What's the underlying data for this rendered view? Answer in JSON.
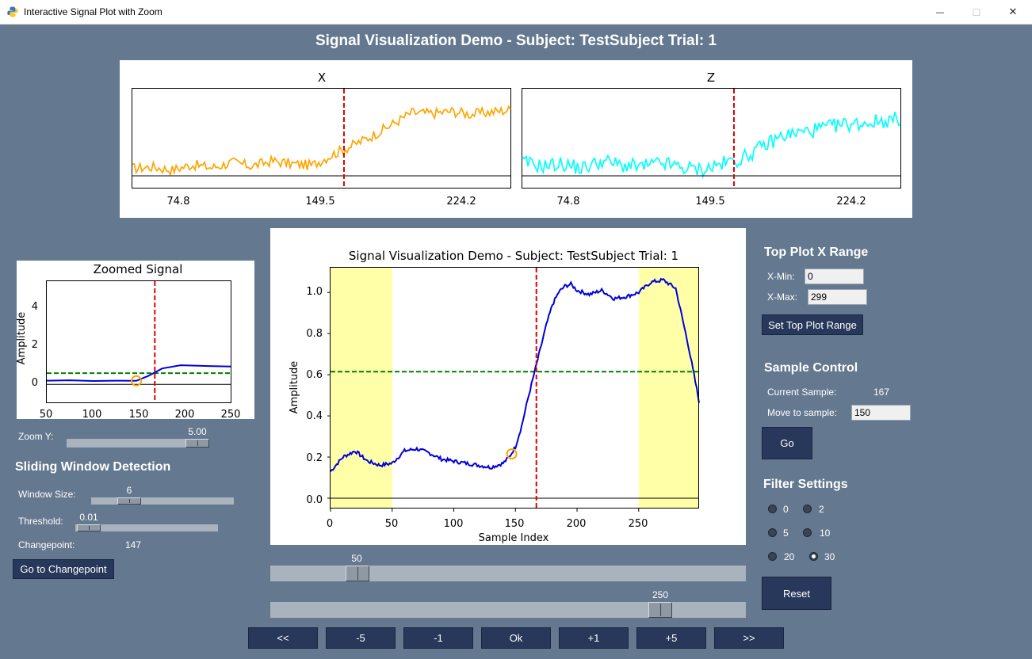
{
  "window": {
    "title": "Interactive Signal Plot with Zoom",
    "minimize": "—",
    "maximize": "☐",
    "close": "✕"
  },
  "main_title": "Signal Visualization Demo - Subject: TestSubject Trial: 1",
  "top_plots": [
    {
      "title": "X",
      "ticks": [
        "74.8",
        "149.5",
        "224.2"
      ],
      "line_color": "#ffa500"
    },
    {
      "title": "Z",
      "ticks": [
        "74.8",
        "149.5",
        "224.2"
      ],
      "line_color": "#00ffff"
    }
  ],
  "zoomed": {
    "title": "Zoomed Signal",
    "ylabel": "Amplitude",
    "yticks": [
      "4",
      "2",
      "0"
    ],
    "xticks": [
      "50",
      "100",
      "150",
      "200",
      "250"
    ]
  },
  "main_plot": {
    "title": "Signal Visualization Demo - Subject: TestSubject Trial: 1",
    "xlabel": "Sample Index",
    "ylabel": "Amplitude",
    "yticks": [
      "1.0",
      "0.8",
      "0.6",
      "0.4",
      "0.2",
      "0.0"
    ],
    "xticks": [
      "0",
      "50",
      "100",
      "150",
      "200",
      "250"
    ]
  },
  "chart_data": [
    {
      "type": "line",
      "title": "X",
      "xlim": [
        0,
        299
      ],
      "changepoint": 167,
      "series": [
        {
          "values": [
            0.12,
            0.14,
            0.1,
            0.17,
            0.13,
            0.2,
            0.15,
            0.22,
            0.18,
            0.16,
            0.3,
            0.42,
            0.55,
            0.7,
            0.86,
            0.85,
            0.88,
            0.84,
            0.87,
            0.9
          ]
        }
      ]
    },
    {
      "type": "line",
      "title": "Z",
      "xlim": [
        0,
        299
      ],
      "changepoint": 167,
      "series": [
        {
          "values": [
            0.2,
            0.15,
            0.18,
            0.12,
            0.22,
            0.16,
            0.14,
            0.19,
            0.13,
            0.1,
            0.18,
            0.25,
            0.4,
            0.55,
            0.6,
            0.65,
            0.7,
            0.72,
            0.75,
            0.78
          ]
        }
      ]
    },
    {
      "type": "line",
      "title": "Zoomed Signal",
      "ylabel": "Amplitude",
      "xlim": [
        50,
        250
      ],
      "ylim": [
        -1,
        5.5
      ],
      "threshold": 0.6,
      "changepoint": 167,
      "marker": {
        "x": 147,
        "y": 0.19
      },
      "series": [
        {
          "x": [
            50,
            75,
            100,
            125,
            147,
            160,
            175,
            195,
            225,
            250
          ],
          "values": [
            0.2,
            0.22,
            0.18,
            0.2,
            0.19,
            0.45,
            0.85,
            1.02,
            0.98,
            0.95
          ]
        }
      ]
    },
    {
      "type": "line",
      "title": "Signal Visualization Demo - Subject: TestSubject Trial: 1",
      "xlabel": "Sample Index",
      "ylabel": "Amplitude",
      "xlim": [
        0,
        299
      ],
      "ylim": [
        -0.05,
        1.12
      ],
      "threshold": 0.615,
      "changepoint": 167,
      "marker": {
        "x": 147,
        "y": 0.215
      },
      "shaded_ranges": [
        [
          0,
          50
        ],
        [
          250,
          299
        ]
      ],
      "series": [
        {
          "x": [
            0,
            10,
            20,
            30,
            40,
            50,
            60,
            70,
            80,
            90,
            100,
            110,
            120,
            130,
            140,
            145,
            150,
            155,
            160,
            165,
            170,
            175,
            180,
            185,
            190,
            195,
            200,
            210,
            220,
            230,
            240,
            250,
            260,
            270,
            280,
            290,
            299
          ],
          "values": [
            0.13,
            0.2,
            0.23,
            0.18,
            0.16,
            0.17,
            0.23,
            0.24,
            0.22,
            0.19,
            0.18,
            0.17,
            0.16,
            0.15,
            0.17,
            0.2,
            0.25,
            0.35,
            0.48,
            0.6,
            0.72,
            0.84,
            0.94,
            1.0,
            1.03,
            1.04,
            1.01,
            0.99,
            1.01,
            0.97,
            0.98,
            1.0,
            1.05,
            1.06,
            1.02,
            0.75,
            0.47
          ]
        }
      ]
    }
  ],
  "top_range": {
    "header": "Top Plot X Range",
    "xmin_label": "X-Min:",
    "xmin_value": "0",
    "xmax_label": "X-Max:",
    "xmax_value": "299",
    "set_button": "Set Top Plot Range"
  },
  "sample_control": {
    "header": "Sample Control",
    "current_label": "Current Sample:",
    "current_value": "167",
    "move_label": "Move to sample:",
    "move_value": "150",
    "go_button": "Go"
  },
  "filter": {
    "header": "Filter Settings",
    "options": [
      "0",
      "2",
      "5",
      "10",
      "20",
      "30"
    ],
    "selected": "30",
    "reset_button": "Reset"
  },
  "zoom_y": {
    "label": "Zoom Y:",
    "value": "5.00"
  },
  "sliding": {
    "header": "Sliding Window Detection",
    "window_label": "Window Size:",
    "window_value": "6",
    "threshold_label": "Threshold:",
    "threshold_value": "0.01",
    "changepoint_label": "Changepoint:",
    "changepoint_value": "147",
    "goto_button": "Go to Changepoint"
  },
  "range_sliders": {
    "start": "50",
    "end": "250"
  },
  "nav_buttons": [
    "<<",
    "-5",
    "-1",
    "Ok",
    "+1",
    "+5",
    ">>"
  ]
}
